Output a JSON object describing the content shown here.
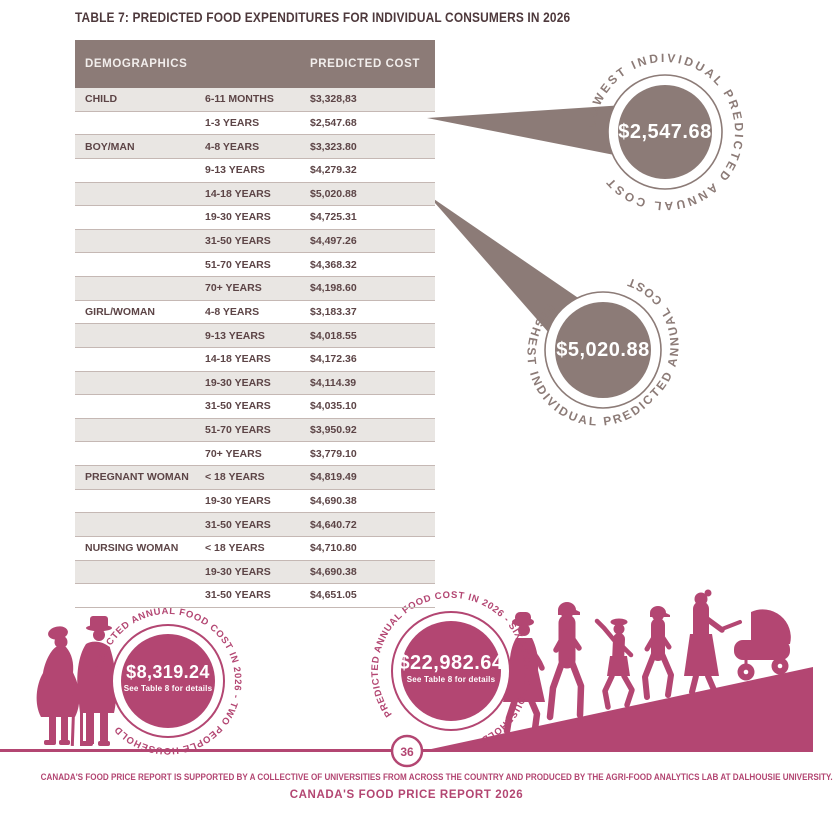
{
  "page": {
    "title": "TABLE 7: PREDICTED FOOD EXPENDITURES FOR INDIVIDUAL CONSUMERS IN 2026",
    "page_number": "36",
    "footer_line1": "CANADA'S FOOD PRICE REPORT IS SUPPORTED BY A COLLECTIVE OF UNIVERSITIES FROM ACROSS THE COUNTRY AND PRODUCED BY THE AGRI-FOOD ANALYTICS LAB AT DALHOUSIE UNIVERSITY.",
    "footer_line2": "CANADA'S FOOD PRICE REPORT 2026"
  },
  "colors": {
    "taupe": "#8c7b77",
    "magenta": "#b34672",
    "row_alt": "#e9e6e3",
    "text_dark": "#4e393c"
  },
  "table": {
    "headers": {
      "demographics": "DEMOGRAPHICS",
      "cost": "PREDICTED COST"
    },
    "rows": [
      {
        "group": "CHILD",
        "age": "6-11 MONTHS",
        "cost": "$3,328,83"
      },
      {
        "group": "",
        "age": "1-3 YEARS",
        "cost": "$2,547.68"
      },
      {
        "group": "BOY/MAN",
        "age": "4-8 YEARS",
        "cost": "$3,323.80"
      },
      {
        "group": "",
        "age": "9-13 YEARS",
        "cost": "$4,279.32"
      },
      {
        "group": "",
        "age": "14-18 YEARS",
        "cost": "$5,020.88"
      },
      {
        "group": "",
        "age": "19-30 YEARS",
        "cost": "$4,725.31"
      },
      {
        "group": "",
        "age": "31-50 YEARS",
        "cost": "$4,497.26"
      },
      {
        "group": "",
        "age": "51-70 YEARS",
        "cost": "$4,368.32"
      },
      {
        "group": "",
        "age": "70+ YEARS",
        "cost": "$4,198.60"
      },
      {
        "group": "GIRL/WOMAN",
        "age": "4-8 YEARS",
        "cost": "$3,183.37"
      },
      {
        "group": "",
        "age": "9-13 YEARS",
        "cost": "$4,018.55"
      },
      {
        "group": "",
        "age": "14-18 YEARS",
        "cost": "$4,172.36"
      },
      {
        "group": "",
        "age": "19-30 YEARS",
        "cost": "$4,114.39"
      },
      {
        "group": "",
        "age": "31-50 YEARS",
        "cost": "$4,035.10"
      },
      {
        "group": "",
        "age": "51-70 YEARS",
        "cost": "$3,950.92"
      },
      {
        "group": "",
        "age": "70+ YEARS",
        "cost": "$3,779.10"
      },
      {
        "group": "PREGNANT WOMAN",
        "age": "< 18 YEARS",
        "cost": "$4,819.49"
      },
      {
        "group": "",
        "age": "19-30 YEARS",
        "cost": "$4,690.38"
      },
      {
        "group": "",
        "age": "31-50 YEARS",
        "cost": "$4,640.72"
      },
      {
        "group": "NURSING WOMAN",
        "age": "< 18 YEARS",
        "cost": "$4,710.80"
      },
      {
        "group": "",
        "age": "19-30 YEARS",
        "cost": "$4,690.38"
      },
      {
        "group": "",
        "age": "31-50 YEARS",
        "cost": "$4,651.05"
      }
    ]
  },
  "callouts": {
    "lowest": {
      "label": "LOWEST INDIVIDUAL PREDICTED ANNUAL COST",
      "value": "$2,547.68"
    },
    "highest": {
      "label": "HIGHEST INDIVIDUAL PREDICTED ANNUAL COST",
      "value": "$5,020.88"
    },
    "two_person": {
      "label": "PREDICTED ANNUAL FOOD COST IN 2026 - TWO PEOPLE HOUSEHOLD",
      "value": "$8,319.24",
      "note": "See Table 8 for details"
    },
    "six_person": {
      "label": "PREDICTED ANNUAL FOOD COST IN 2026 - SIX PEOPLE HOUSEHOLD",
      "value": "$22,982.64",
      "note": "See Table 8 for details"
    }
  }
}
